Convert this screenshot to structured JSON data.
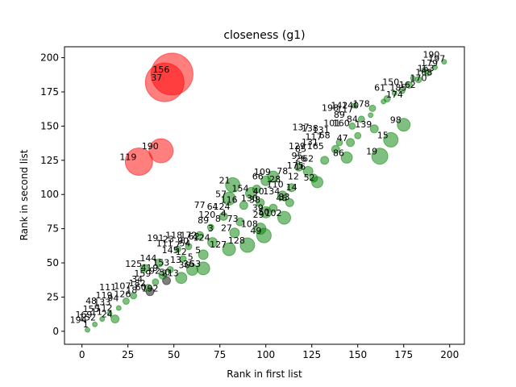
{
  "chart_data": {
    "type": "scatter",
    "title": "closeness (g1)",
    "xlabel": "Rank in first list",
    "ylabel": "Rank in second list",
    "xlim": [
      -9.5,
      208
    ],
    "ylim": [
      -9.5,
      208
    ],
    "xticks": [
      0,
      25,
      50,
      75,
      100,
      125,
      150,
      175,
      200
    ],
    "yticks": [
      0,
      25,
      50,
      75,
      100,
      125,
      150,
      175,
      200
    ],
    "grid": false,
    "legend": "none",
    "colors": {
      "green": "#008000",
      "red": "#ff0000",
      "black": "#000000"
    },
    "points": [
      {
        "id": "156",
        "x": 49,
        "y": 188,
        "s": 26,
        "c": "red"
      },
      {
        "id": "37",
        "x": 45,
        "y": 182,
        "s": 24,
        "c": "red"
      },
      {
        "id": "190",
        "x": 43,
        "y": 132,
        "s": 15,
        "c": "red"
      },
      {
        "id": "119",
        "x": 31,
        "y": 124,
        "s": 17,
        "c": "red"
      },
      {
        "id": "",
        "x": 46,
        "y": 37,
        "s": 5,
        "c": "black"
      },
      {
        "id": "",
        "x": 37,
        "y": 29,
        "s": 5,
        "c": "black"
      },
      {
        "id": "98",
        "x": 175,
        "y": 151,
        "s": 8,
        "c": "green"
      },
      {
        "id": "15",
        "x": 168,
        "y": 140,
        "s": 9,
        "c": "green"
      },
      {
        "id": "19",
        "x": 162,
        "y": 128,
        "s": 10,
        "c": "green"
      },
      {
        "id": "139",
        "x": 159,
        "y": 148,
        "s": 5,
        "c": "green"
      },
      {
        "id": "86",
        "x": 144,
        "y": 127,
        "s": 7,
        "c": "green"
      },
      {
        "id": "47",
        "x": 146,
        "y": 138,
        "s": 5,
        "c": "green"
      },
      {
        "id": "52",
        "x": 128,
        "y": 109,
        "s": 7,
        "c": "green"
      },
      {
        "id": "16",
        "x": 123,
        "y": 117,
        "s": 6,
        "c": "green"
      },
      {
        "id": "102",
        "x": 110,
        "y": 83,
        "s": 8,
        "c": "green"
      },
      {
        "id": "39",
        "x": 100,
        "y": 87,
        "s": 7,
        "c": "green"
      },
      {
        "id": "49",
        "x": 99,
        "y": 70,
        "s": 9,
        "c": "green"
      },
      {
        "id": "108",
        "x": 97,
        "y": 75,
        "s": 7,
        "c": "green"
      },
      {
        "id": "128",
        "x": 90,
        "y": 63,
        "s": 9,
        "c": "green"
      },
      {
        "id": "127",
        "x": 80,
        "y": 60,
        "s": 8,
        "c": "green"
      },
      {
        "id": "124",
        "x": 71,
        "y": 65,
        "s": 6,
        "c": "green"
      },
      {
        "id": "27",
        "x": 83,
        "y": 72,
        "s": 6,
        "c": "green"
      },
      {
        "id": "21",
        "x": 82,
        "y": 107,
        "s": 9,
        "c": "green"
      },
      {
        "id": "57",
        "x": 80,
        "y": 97,
        "s": 8,
        "c": "green"
      },
      {
        "id": "154",
        "x": 92,
        "y": 101,
        "s": 7,
        "c": "green"
      },
      {
        "id": "109",
        "x": 104,
        "y": 113,
        "s": 7,
        "c": "green"
      },
      {
        "id": "66",
        "x": 100,
        "y": 110,
        "s": 6,
        "c": "green"
      },
      {
        "id": "134",
        "x": 109,
        "y": 99,
        "s": 6,
        "c": "green"
      },
      {
        "id": "130",
        "x": 97,
        "y": 94,
        "s": 5,
        "c": "green"
      },
      {
        "id": "46",
        "x": 113,
        "y": 94,
        "s": 5,
        "c": "green"
      },
      {
        "id": "53",
        "x": 66,
        "y": 46,
        "s": 8,
        "c": "green"
      },
      {
        "id": "36",
        "x": 60,
        "y": 45,
        "s": 7,
        "c": "green"
      },
      {
        "id": "213",
        "x": 54,
        "y": 39,
        "s": 7,
        "c": "green"
      },
      {
        "id": "5",
        "x": 66,
        "y": 56,
        "s": 6,
        "c": "green"
      },
      {
        "id": "144",
        "x": 42,
        "y": 50,
        "s": 5,
        "c": "green"
      },
      {
        "id": "125",
        "x": 34,
        "y": 46,
        "s": 5,
        "c": "green"
      },
      {
        "id": "92",
        "x": 44,
        "y": 41,
        "s": 5,
        "c": "green"
      },
      {
        "id": "24",
        "x": 18,
        "y": 9,
        "s": 5,
        "c": "green"
      },
      {
        "id": "",
        "x": 64,
        "y": 70,
        "s": 5,
        "c": "green"
      },
      {
        "id": "",
        "x": 77,
        "y": 84,
        "s": 5,
        "c": "green"
      },
      {
        "id": "",
        "x": 70,
        "y": 76,
        "s": 4,
        "c": "green"
      },
      {
        "id": "",
        "x": 88,
        "y": 92,
        "s": 5,
        "c": "green"
      },
      {
        "id": "",
        "x": 95,
        "y": 104,
        "s": 5,
        "c": "green"
      },
      {
        "id": "",
        "x": 118,
        "y": 120,
        "s": 5,
        "c": "green"
      },
      {
        "id": "",
        "x": 132,
        "y": 125,
        "s": 5,
        "c": "green"
      },
      {
        "id": "",
        "x": 138,
        "y": 133,
        "s": 5,
        "c": "green"
      },
      {
        "id": "",
        "x": 150,
        "y": 143,
        "s": 4,
        "c": "green"
      },
      {
        "id": "",
        "x": 152,
        "y": 155,
        "s": 4,
        "c": "green"
      },
      {
        "id": "",
        "x": 158,
        "y": 163,
        "s": 4,
        "c": "green"
      },
      {
        "id": "",
        "x": 166,
        "y": 170,
        "s": 4,
        "c": "green"
      },
      {
        "id": "",
        "x": 174,
        "y": 176,
        "s": 4,
        "c": "green"
      },
      {
        "id": "",
        "x": 178,
        "y": 180,
        "s": 4,
        "c": "green"
      },
      {
        "id": "",
        "x": 183,
        "y": 184,
        "s": 4,
        "c": "green"
      },
      {
        "id": "",
        "x": 188,
        "y": 189,
        "s": 4,
        "c": "green"
      },
      {
        "id": "",
        "x": 192,
        "y": 193,
        "s": 3,
        "c": "green"
      },
      {
        "id": "",
        "x": 197,
        "y": 197,
        "s": 3,
        "c": "green"
      },
      {
        "id": "",
        "x": 157,
        "y": 158,
        "s": 3,
        "c": "green"
      },
      {
        "id": "",
        "x": 147,
        "y": 150,
        "s": 4,
        "c": "green"
      },
      {
        "id": "",
        "x": 28,
        "y": 26,
        "s": 4,
        "c": "green"
      },
      {
        "id": "",
        "x": 24,
        "y": 22,
        "s": 4,
        "c": "green"
      },
      {
        "id": "",
        "x": 20,
        "y": 17,
        "s": 3,
        "c": "green"
      },
      {
        "id": "",
        "x": 15,
        "y": 13,
        "s": 3,
        "c": "green"
      },
      {
        "id": "",
        "x": 11,
        "y": 9,
        "s": 3,
        "c": "green"
      },
      {
        "id": "",
        "x": 7,
        "y": 5,
        "s": 3,
        "c": "green"
      },
      {
        "id": "",
        "x": 3,
        "y": 1,
        "s": 3,
        "c": "green"
      },
      {
        "id": "",
        "x": 55,
        "y": 53,
        "s": 4,
        "c": "green"
      },
      {
        "id": "",
        "x": 52,
        "y": 60,
        "s": 4,
        "c": "green"
      },
      {
        "id": "",
        "x": 58,
        "y": 62,
        "s": 4,
        "c": "green"
      },
      {
        "id": "",
        "x": 86,
        "y": 80,
        "s": 5,
        "c": "green"
      },
      {
        "id": "",
        "x": 104,
        "y": 90,
        "s": 5,
        "c": "green"
      },
      {
        "id": "",
        "x": 114,
        "y": 105,
        "s": 5,
        "c": "green"
      },
      {
        "id": "",
        "x": 126,
        "y": 112,
        "s": 5,
        "c": "green"
      },
      {
        "id": "",
        "x": 140,
        "y": 138,
        "s": 4,
        "c": "green"
      },
      {
        "id": "",
        "x": 148,
        "y": 165,
        "s": 3,
        "c": "green"
      },
      {
        "id": "",
        "x": 164,
        "y": 168,
        "s": 3,
        "c": "green"
      },
      {
        "id": "",
        "x": 170,
        "y": 174,
        "s": 3,
        "c": "green"
      },
      {
        "id": "",
        "x": 180,
        "y": 185,
        "s": 3,
        "c": "green"
      },
      {
        "id": "",
        "x": 186,
        "y": 191,
        "s": 3,
        "c": "green"
      },
      {
        "id": "",
        "x": 36,
        "y": 32,
        "s": 4,
        "c": "green"
      },
      {
        "id": "",
        "x": 40,
        "y": 36,
        "s": 4,
        "c": "green"
      },
      {
        "id": "",
        "x": 48,
        "y": 45,
        "s": 4,
        "c": "green"
      }
    ],
    "labels": [
      {
        "t": "190",
        "x": 190,
        "y": 200
      },
      {
        "t": "197",
        "x": 193,
        "y": 197
      },
      {
        "t": "179",
        "x": 189,
        "y": 194
      },
      {
        "t": "163",
        "x": 187,
        "y": 190
      },
      {
        "t": "168",
        "x": 186,
        "y": 187
      },
      {
        "t": "170",
        "x": 183,
        "y": 183
      },
      {
        "t": "162",
        "x": 177,
        "y": 178
      },
      {
        "t": "61",
        "x": 162,
        "y": 176
      },
      {
        "t": "150",
        "x": 168,
        "y": 180
      },
      {
        "t": "185",
        "x": 172,
        "y": 176
      },
      {
        "t": "174",
        "x": 170,
        "y": 171
      },
      {
        "t": "140",
        "x": 146,
        "y": 163
      },
      {
        "t": "142",
        "x": 140,
        "y": 163
      },
      {
        "t": "198",
        "x": 135,
        "y": 161
      },
      {
        "t": "178",
        "x": 152,
        "y": 164
      },
      {
        "t": "117",
        "x": 143,
        "y": 160
      },
      {
        "t": "89",
        "x": 140,
        "y": 156
      },
      {
        "t": "84",
        "x": 147,
        "y": 153
      },
      {
        "t": "101",
        "x": 136,
        "y": 150
      },
      {
        "t": "160",
        "x": 141,
        "y": 150
      },
      {
        "t": "137",
        "x": 119,
        "y": 147
      },
      {
        "t": "138",
        "x": 124,
        "y": 146
      },
      {
        "t": "131",
        "x": 130,
        "y": 145
      },
      {
        "t": "68",
        "x": 132,
        "y": 141
      },
      {
        "t": "117",
        "x": 126,
        "y": 140
      },
      {
        "t": "131",
        "x": 124,
        "y": 136
      },
      {
        "t": "129",
        "x": 117,
        "y": 133
      },
      {
        "t": "165",
        "x": 127,
        "y": 133
      },
      {
        "t": "85",
        "x": 119,
        "y": 131
      },
      {
        "t": "95",
        "x": 117,
        "y": 126
      },
      {
        "t": "62",
        "x": 123,
        "y": 124
      },
      {
        "t": "26",
        "x": 119,
        "y": 124
      },
      {
        "t": "175",
        "x": 116,
        "y": 119
      },
      {
        "t": "78",
        "x": 109,
        "y": 115
      },
      {
        "t": "12",
        "x": 115,
        "y": 111
      },
      {
        "t": "28",
        "x": 105,
        "y": 109
      },
      {
        "t": "110",
        "x": 105,
        "y": 105
      },
      {
        "t": "38",
        "x": 94,
        "y": 94
      },
      {
        "t": "40",
        "x": 96,
        "y": 100
      },
      {
        "t": "33",
        "x": 110,
        "y": 96
      },
      {
        "t": "14",
        "x": 114,
        "y": 103
      },
      {
        "t": "50",
        "x": 99,
        "y": 85
      },
      {
        "t": "29",
        "x": 96,
        "y": 83
      },
      {
        "t": "77",
        "x": 64,
        "y": 90
      },
      {
        "t": "64",
        "x": 71,
        "y": 89
      },
      {
        "t": "124",
        "x": 76,
        "y": 89
      },
      {
        "t": "116",
        "x": 80,
        "y": 94
      },
      {
        "t": "4",
        "x": 77,
        "y": 84
      },
      {
        "t": "120",
        "x": 68,
        "y": 83
      },
      {
        "t": "89",
        "x": 66,
        "y": 79
      },
      {
        "t": "8",
        "x": 74,
        "y": 80
      },
      {
        "t": "73",
        "x": 82,
        "y": 80
      },
      {
        "t": "3",
        "x": 70,
        "y": 73
      },
      {
        "t": "172",
        "x": 58,
        "y": 68
      },
      {
        "t": "62",
        "x": 61,
        "y": 67
      },
      {
        "t": "118",
        "x": 50,
        "y": 68
      },
      {
        "t": "90",
        "x": 55,
        "y": 64
      },
      {
        "t": "191",
        "x": 40,
        "y": 66
      },
      {
        "t": "111",
        "x": 45,
        "y": 62
      },
      {
        "t": "23",
        "x": 47,
        "y": 65
      },
      {
        "t": "7",
        "x": 52,
        "y": 61
      },
      {
        "t": "54",
        "x": 56,
        "y": 62
      },
      {
        "t": "145",
        "x": 48,
        "y": 57
      },
      {
        "t": "12",
        "x": 54,
        "y": 56
      },
      {
        "t": "5",
        "x": 59,
        "y": 52
      },
      {
        "t": "13",
        "x": 51,
        "y": 50
      },
      {
        "t": "153",
        "x": 43,
        "y": 48
      },
      {
        "t": "36",
        "x": 58,
        "y": 47
      },
      {
        "t": "41",
        "x": 35,
        "y": 44
      },
      {
        "t": "9",
        "x": 40,
        "y": 44
      },
      {
        "t": "50",
        "x": 45,
        "y": 41
      },
      {
        "t": "34",
        "x": 30,
        "y": 36
      },
      {
        "t": "159",
        "x": 33,
        "y": 40
      },
      {
        "t": "182",
        "x": 30,
        "y": 33
      },
      {
        "t": "192",
        "x": 37,
        "y": 29
      },
      {
        "t": "60",
        "x": 32,
        "y": 30
      },
      {
        "t": "107",
        "x": 22,
        "y": 31
      },
      {
        "t": "111",
        "x": 14,
        "y": 30
      },
      {
        "t": "18",
        "x": 27,
        "y": 28
      },
      {
        "t": "126",
        "x": 22,
        "y": 25
      },
      {
        "t": "119",
        "x": 12,
        "y": 24
      },
      {
        "t": "94",
        "x": 17,
        "y": 22
      },
      {
        "t": "48",
        "x": 5,
        "y": 20
      },
      {
        "t": "133",
        "x": 11,
        "y": 19
      },
      {
        "t": "155",
        "x": 5,
        "y": 14
      },
      {
        "t": "112",
        "x": 12,
        "y": 15
      },
      {
        "t": "11",
        "x": 8,
        "y": 12
      },
      {
        "t": "169",
        "x": 1,
        "y": 10
      },
      {
        "t": "152",
        "x": 3,
        "y": 8
      },
      {
        "t": "194",
        "x": -2,
        "y": 6
      },
      {
        "t": "1",
        "x": 2,
        "y": 3
      }
    ]
  }
}
